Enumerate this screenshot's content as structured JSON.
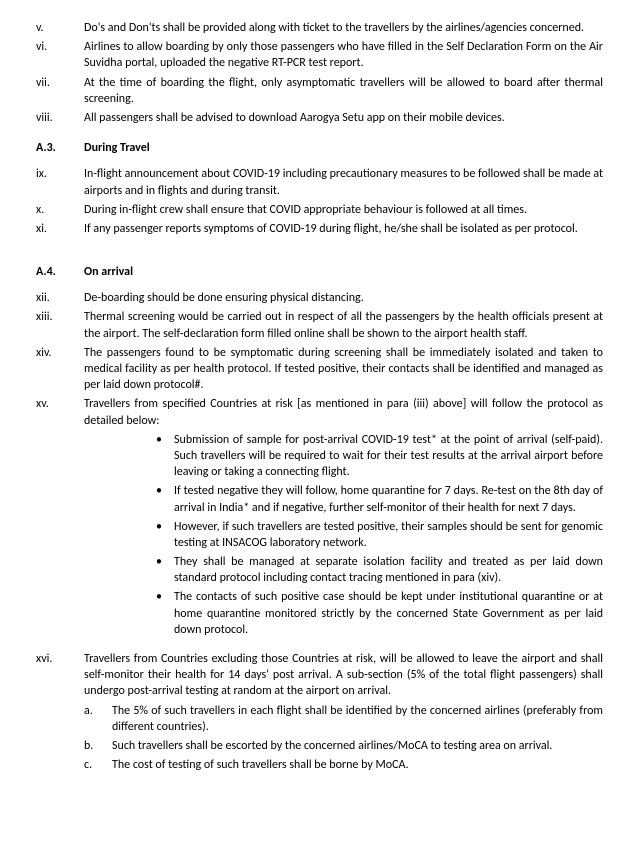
{
  "items": {
    "v": {
      "marker": "v.",
      "text": "Do's and Don'ts shall be provided along with ticket to the travellers by the airlines/agencies concerned."
    },
    "vi": {
      "marker": "vi.",
      "text": "Airlines to allow boarding by only those passengers who have filled in the Self Declaration Form on the Air Suvidha portal, uploaded the negative RT-PCR test report."
    },
    "vii": {
      "marker": "vii.",
      "text": "At the time of boarding the flight, only asymptomatic travellers will be allowed to board after thermal screening."
    },
    "viii": {
      "marker": "viii.",
      "text": "All passengers shall be advised to download Aarogya Setu app on their mobile devices."
    }
  },
  "sectionA3": {
    "marker": "A.3.",
    "title": "During Travel"
  },
  "travel": {
    "ix": {
      "marker": "ix.",
      "text": "In-flight announcement about COVID-19 including precautionary measures to be followed shall be made at airports and in flights and during transit."
    },
    "x": {
      "marker": "x.",
      "text": "During in-flight crew shall ensure that COVID appropriate behaviour is followed at all times."
    },
    "xi": {
      "marker": "xi.",
      "text": "If any passenger reports symptoms of COVID-19 during flight, he/she shall be isolated as per protocol."
    }
  },
  "sectionA4": {
    "marker": "A.4.",
    "title": "On arrival"
  },
  "arrival": {
    "xii": {
      "marker": "xii.",
      "text": "De-boarding should be done ensuring physical distancing."
    },
    "xiii": {
      "marker": "xiii.",
      "text": "Thermal screening would be carried out in respect of all the passengers by the health officials present at the airport. The self-declaration form filled online shall be shown to the airport health staff."
    },
    "xiv": {
      "marker": "xiv.",
      "text": "The passengers found to be symptomatic during screening shall be immediately isolated and taken to medical facility as per health protocol. If tested positive, their contacts shall be identified and managed as per laid down protocol#."
    },
    "xv": {
      "marker": "xv.",
      "text": "Travellers from specified Countries at risk [as mentioned in para (iii) above] will follow the protocol as detailed below:"
    },
    "xvi": {
      "marker": "xvi.",
      "text": "Travellers from Countries excluding those Countries at risk, will be allowed to leave the airport and shall self-monitor their health for 14 days' post arrival. A sub-section (5% of the total flight passengers) shall undergo post-arrival testing at random at the airport on arrival."
    }
  },
  "bullets": {
    "b1": "Submission of sample for post-arrival COVID-19 test* at the point of arrival (self-paid). Such travellers will be required to wait for their test results at the arrival airport before leaving or taking a connecting flight.",
    "b2": "If tested negative they will follow, home quarantine for 7 days. Re-test on the 8th day of arrival in India* and if negative, further self-monitor of their health for next 7 days.",
    "b3": "However, if such travellers are tested positive, their samples should be sent for genomic testing at INSACOG laboratory network.",
    "b4": "They shall be managed at separate isolation facility and treated as per laid down standard protocol including contact tracing mentioned in para (xiv).",
    "b5": "The contacts of such positive case should be kept under institutional quarantine or at home quarantine monitored strictly by the concerned State Government as per laid down protocol."
  },
  "sub": {
    "a": {
      "marker": "a.",
      "text": "The 5% of such travellers in each flight shall be identified by the concerned airlines (preferably from different countries)."
    },
    "b": {
      "marker": "b.",
      "text": "Such travellers shall be escorted by the concerned airlines/MoCA to testing area on arrival."
    },
    "c": {
      "marker": "c.",
      "text": "The cost of testing of such travellers shall be borne by MoCA."
    }
  },
  "bulletGlyph": "•"
}
